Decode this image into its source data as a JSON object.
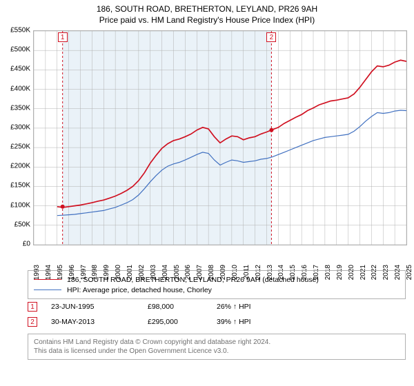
{
  "title": {
    "main": "186, SOUTH ROAD, BRETHERTON, LEYLAND, PR26 9AH",
    "sub": "Price paid vs. HM Land Registry's House Price Index (HPI)",
    "fontsize": 12
  },
  "chart": {
    "type": "line",
    "background_color": "#ffffff",
    "shade_color": "#eaf2f8",
    "grid_color": "#b0b0b0",
    "x_start_year": 1993,
    "x_end_year": 2025,
    "ylim": [
      0,
      550000
    ],
    "ytick_step": 50000,
    "y_tick_labels": [
      "£0",
      "£50K",
      "£100K",
      "£150K",
      "£200K",
      "£250K",
      "£300K",
      "£350K",
      "£400K",
      "£450K",
      "£500K",
      "£550K"
    ],
    "x_tick_labels": [
      "1993",
      "1994",
      "1995",
      "1996",
      "1997",
      "1998",
      "1999",
      "2000",
      "2001",
      "2002",
      "2003",
      "2004",
      "2005",
      "2006",
      "2007",
      "2008",
      "2009",
      "2010",
      "2011",
      "2012",
      "2013",
      "2014",
      "2015",
      "2016",
      "2017",
      "2018",
      "2019",
      "2020",
      "2021",
      "2022",
      "2023",
      "2024",
      "2025"
    ],
    "series": [
      {
        "name": "property",
        "label": "186, SOUTH ROAD, BRETHERTON, LEYLAND, PR26 9AH (detached house)",
        "color": "#d01020",
        "line_width": 1.7,
        "data": [
          [
            1995.0,
            98
          ],
          [
            1995.5,
            96
          ],
          [
            1996.0,
            98
          ],
          [
            1996.5,
            100
          ],
          [
            1997.0,
            102
          ],
          [
            1997.5,
            105
          ],
          [
            1998.0,
            108
          ],
          [
            1998.5,
            112
          ],
          [
            1999.0,
            115
          ],
          [
            1999.5,
            120
          ],
          [
            2000.0,
            125
          ],
          [
            2000.5,
            132
          ],
          [
            2001.0,
            140
          ],
          [
            2001.5,
            150
          ],
          [
            2002.0,
            165
          ],
          [
            2002.5,
            185
          ],
          [
            2003.0,
            210
          ],
          [
            2003.5,
            230
          ],
          [
            2004.0,
            248
          ],
          [
            2004.5,
            260
          ],
          [
            2005.0,
            268
          ],
          [
            2005.5,
            272
          ],
          [
            2006.0,
            278
          ],
          [
            2006.5,
            285
          ],
          [
            2007.0,
            295
          ],
          [
            2007.5,
            302
          ],
          [
            2008.0,
            298
          ],
          [
            2008.5,
            278
          ],
          [
            2009.0,
            262
          ],
          [
            2009.5,
            272
          ],
          [
            2010.0,
            280
          ],
          [
            2010.5,
            278
          ],
          [
            2011.0,
            270
          ],
          [
            2011.5,
            275
          ],
          [
            2012.0,
            278
          ],
          [
            2012.5,
            285
          ],
          [
            2013.0,
            290
          ],
          [
            2013.4,
            295
          ],
          [
            2014.0,
            302
          ],
          [
            2014.5,
            312
          ],
          [
            2015.0,
            320
          ],
          [
            2015.5,
            328
          ],
          [
            2016.0,
            335
          ],
          [
            2016.5,
            345
          ],
          [
            2017.0,
            352
          ],
          [
            2017.5,
            360
          ],
          [
            2018.0,
            365
          ],
          [
            2018.5,
            370
          ],
          [
            2019.0,
            372
          ],
          [
            2019.5,
            375
          ],
          [
            2020.0,
            378
          ],
          [
            2020.5,
            388
          ],
          [
            2021.0,
            405
          ],
          [
            2021.5,
            425
          ],
          [
            2022.0,
            445
          ],
          [
            2022.5,
            460
          ],
          [
            2023.0,
            458
          ],
          [
            2023.5,
            462
          ],
          [
            2024.0,
            470
          ],
          [
            2024.5,
            475
          ],
          [
            2025.0,
            472
          ]
        ]
      },
      {
        "name": "hpi",
        "label": "HPI: Average price, detached house, Chorley",
        "color": "#4070c0",
        "line_width": 1.2,
        "data": [
          [
            1995.0,
            75
          ],
          [
            1995.5,
            76
          ],
          [
            1996.0,
            77
          ],
          [
            1996.5,
            78
          ],
          [
            1997.0,
            80
          ],
          [
            1997.5,
            82
          ],
          [
            1998.0,
            84
          ],
          [
            1998.5,
            86
          ],
          [
            1999.0,
            88
          ],
          [
            1999.5,
            92
          ],
          [
            2000.0,
            96
          ],
          [
            2000.5,
            102
          ],
          [
            2001.0,
            108
          ],
          [
            2001.5,
            116
          ],
          [
            2002.0,
            128
          ],
          [
            2002.5,
            144
          ],
          [
            2003.0,
            162
          ],
          [
            2003.5,
            178
          ],
          [
            2004.0,
            192
          ],
          [
            2004.5,
            202
          ],
          [
            2005.0,
            208
          ],
          [
            2005.5,
            212
          ],
          [
            2006.0,
            218
          ],
          [
            2006.5,
            225
          ],
          [
            2007.0,
            232
          ],
          [
            2007.5,
            238
          ],
          [
            2008.0,
            235
          ],
          [
            2008.5,
            218
          ],
          [
            2009.0,
            205
          ],
          [
            2009.5,
            212
          ],
          [
            2010.0,
            218
          ],
          [
            2010.5,
            216
          ],
          [
            2011.0,
            212
          ],
          [
            2011.5,
            214
          ],
          [
            2012.0,
            216
          ],
          [
            2012.5,
            220
          ],
          [
            2013.0,
            222
          ],
          [
            2013.5,
            226
          ],
          [
            2014.0,
            232
          ],
          [
            2014.5,
            238
          ],
          [
            2015.0,
            244
          ],
          [
            2015.5,
            250
          ],
          [
            2016.0,
            256
          ],
          [
            2016.5,
            262
          ],
          [
            2017.0,
            268
          ],
          [
            2017.5,
            272
          ],
          [
            2018.0,
            276
          ],
          [
            2018.5,
            278
          ],
          [
            2019.0,
            280
          ],
          [
            2019.5,
            282
          ],
          [
            2020.0,
            284
          ],
          [
            2020.5,
            292
          ],
          [
            2021.0,
            304
          ],
          [
            2021.5,
            318
          ],
          [
            2022.0,
            330
          ],
          [
            2022.5,
            340
          ],
          [
            2023.0,
            338
          ],
          [
            2023.5,
            340
          ],
          [
            2024.0,
            344
          ],
          [
            2024.5,
            346
          ],
          [
            2025.0,
            345
          ]
        ]
      }
    ],
    "markers": [
      {
        "id": "1",
        "year": 1995.47,
        "date": "23-JUN-1995",
        "price": "£98,000",
        "pct": "26% ↑ HPI",
        "price_value": 98,
        "color": "#d01020"
      },
      {
        "id": "2",
        "year": 2013.41,
        "date": "30-MAY-2013",
        "price": "£295,000",
        "pct": "39% ↑ HPI",
        "price_value": 295,
        "color": "#d01020"
      }
    ]
  },
  "footer": {
    "line1": "Contains HM Land Registry data © Crown copyright and database right 2024.",
    "line2": "This data is licensed under the Open Government Licence v3.0."
  }
}
